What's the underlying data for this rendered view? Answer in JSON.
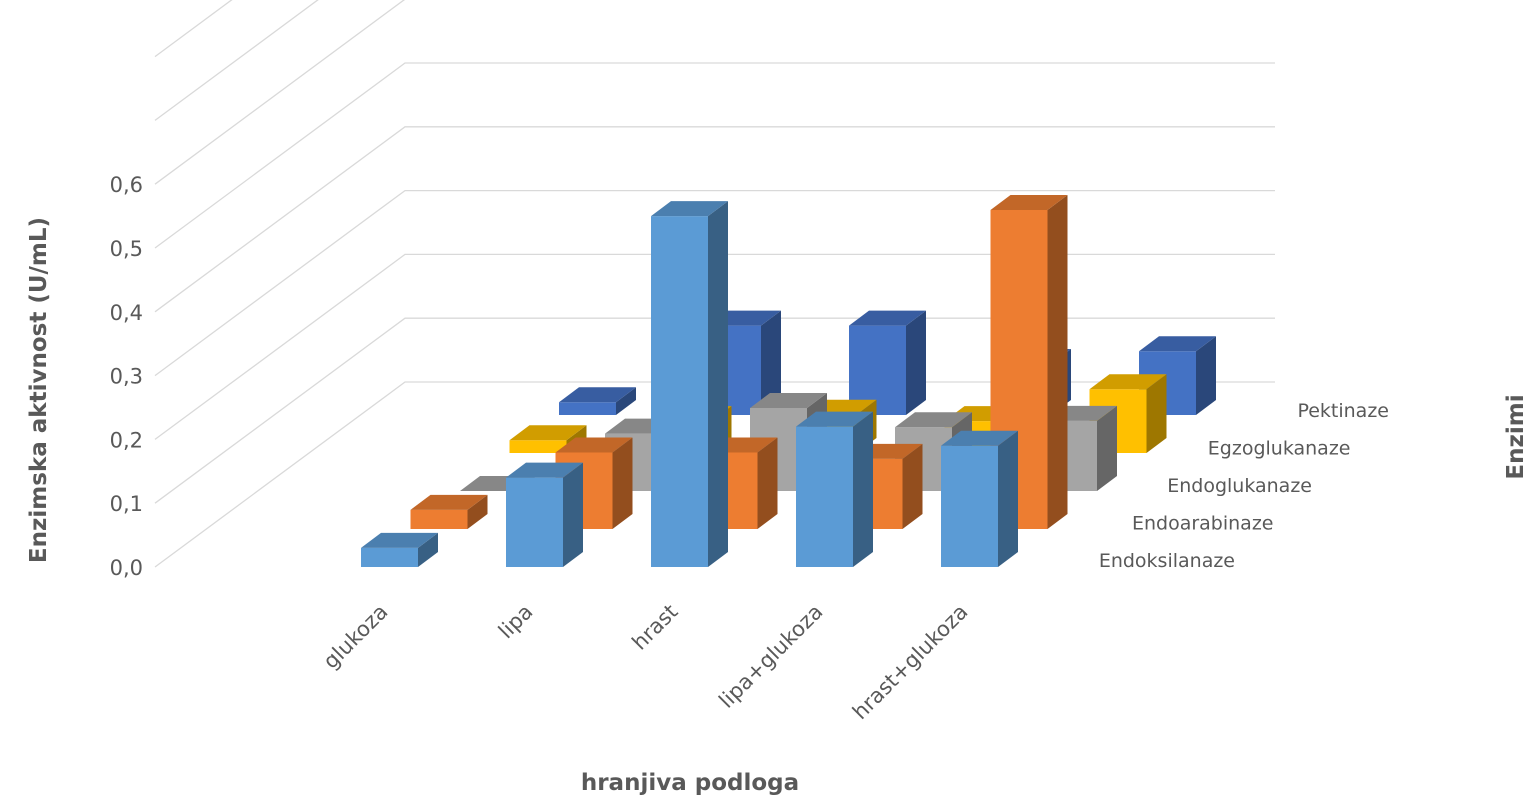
{
  "chart_data": {
    "type": "bar",
    "variant": "3d-column",
    "categories": [
      "glukoza",
      "lipa",
      "hrast",
      "lipa+glukoza",
      "hrast+glukoza"
    ],
    "series": [
      {
        "name": "Endoksilanaze",
        "color": "#5b9bd5",
        "values": [
          0.03,
          0.14,
          0.55,
          0.22,
          0.19
        ]
      },
      {
        "name": "Endoarabinaze",
        "color": "#ed7d31",
        "values": [
          0.03,
          0.12,
          0.12,
          0.11,
          0.5
        ]
      },
      {
        "name": "Endoglukanaze",
        "color": "#a5a5a5",
        "values": [
          0.0,
          0.09,
          0.13,
          0.1,
          0.11
        ]
      },
      {
        "name": "Egzoglukanaze",
        "color": "#ffc000",
        "values": [
          0.02,
          0.05,
          0.06,
          0.05,
          0.1
        ]
      },
      {
        "name": "Pektinaze",
        "color": "#4472c4",
        "values": [
          0.02,
          0.14,
          0.14,
          0.08,
          0.1
        ]
      }
    ],
    "xlabel": "hranjiva podloga",
    "ylabel": "Enzimska aktivnost (U/mL)",
    "zlabel": "Enzimi",
    "ylim": [
      0,
      0.6
    ],
    "yticks": [
      "0,0",
      "0,1",
      "0,2",
      "0,3",
      "0,4",
      "0,5",
      "0,6"
    ],
    "grid": true
  }
}
